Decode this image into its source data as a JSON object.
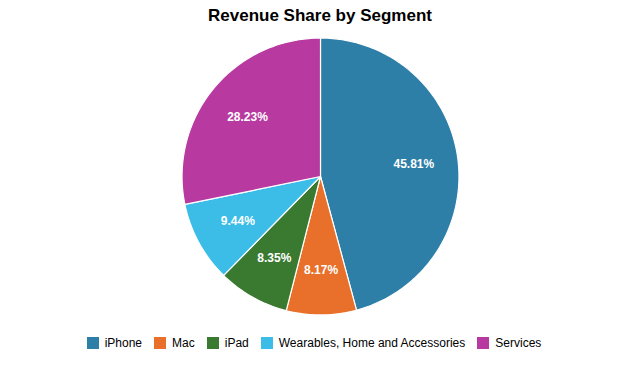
{
  "chart_data": {
    "type": "pie",
    "title": "Revenue Share by Segment",
    "categories": [
      "iPhone",
      "Mac",
      "iPad",
      "Wearables, Home and Accessories",
      "Services"
    ],
    "values": [
      45.81,
      8.17,
      8.35,
      9.44,
      28.23
    ],
    "value_labels": [
      "45.81%",
      "8.17%",
      "8.35%",
      "9.44%",
      "28.23%"
    ],
    "colors": [
      "#2e7fa8",
      "#e8702a",
      "#3a7a30",
      "#3bbde8",
      "#b83aa0"
    ],
    "data_labels": true,
    "legend": "bottom"
  }
}
